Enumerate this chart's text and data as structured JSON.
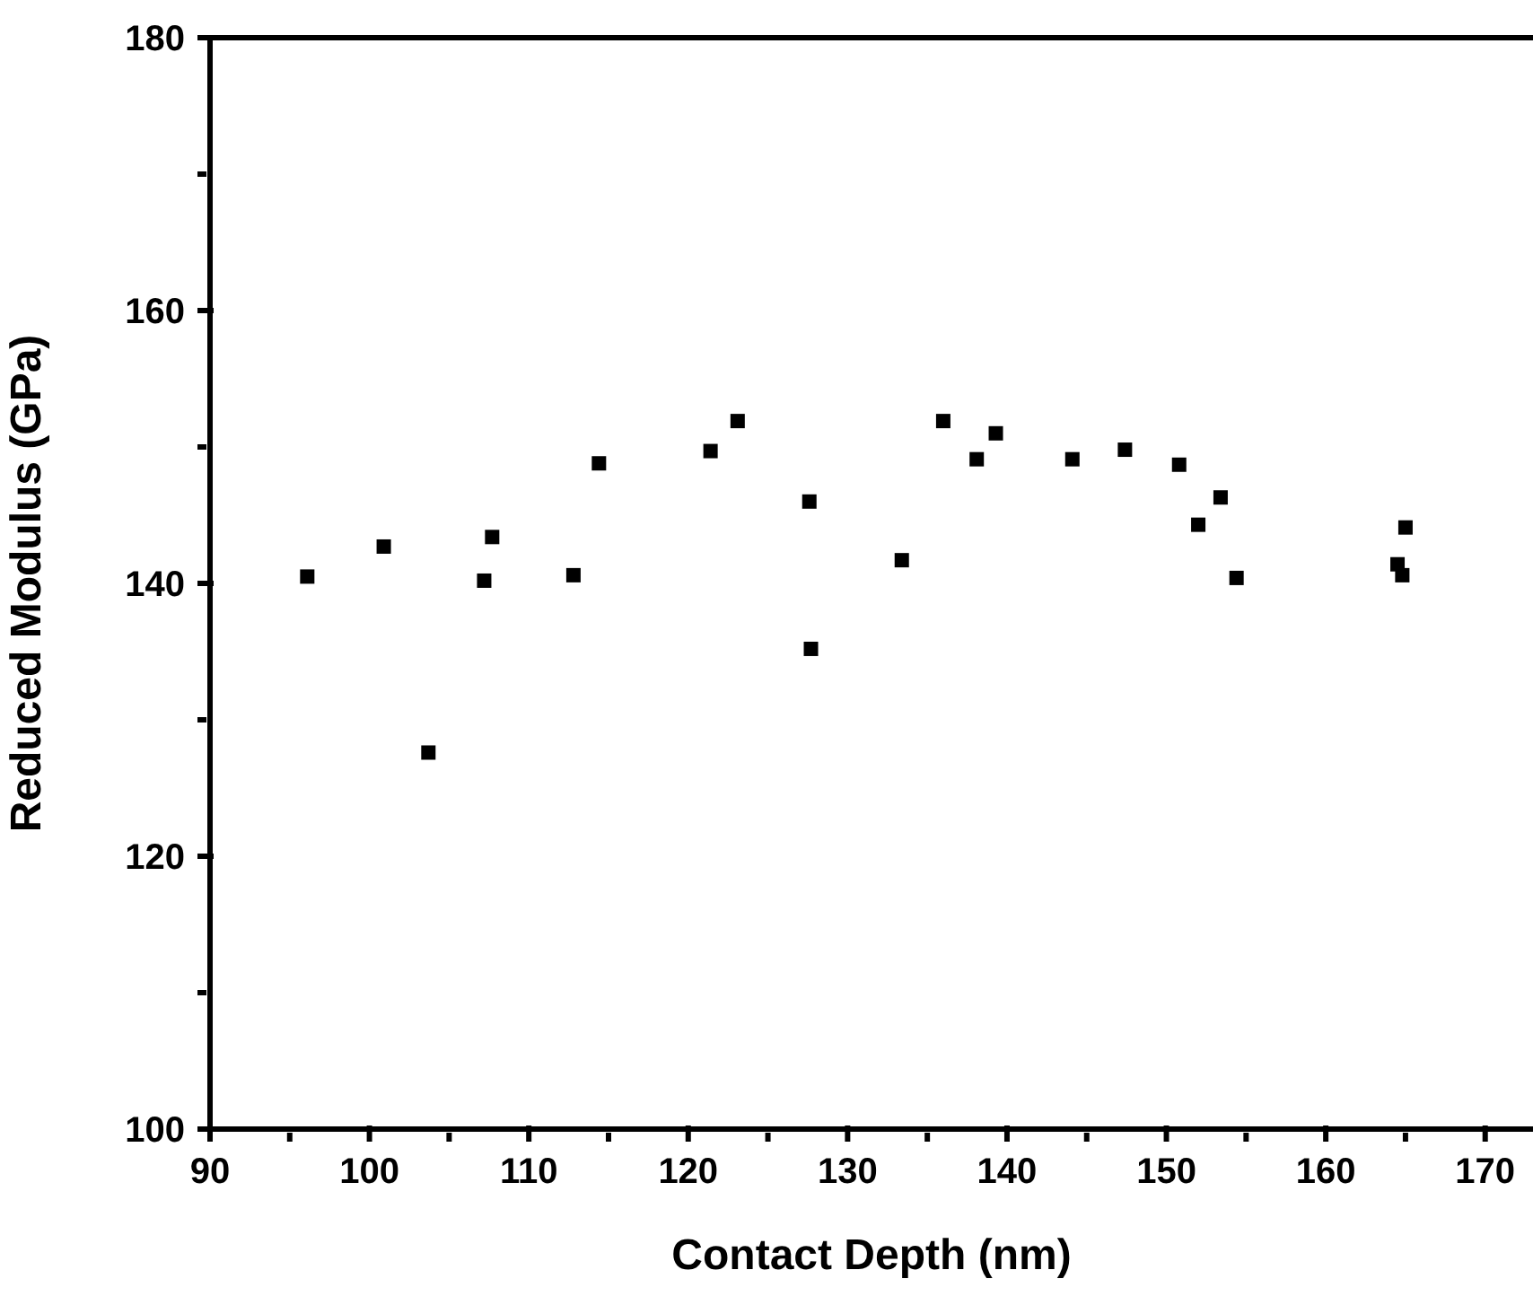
{
  "chart_data": {
    "type": "scatter",
    "xlabel": "Contact Depth (nm)",
    "ylabel": "Reduced Modulus (GPa)",
    "xlim": [
      90,
      173
    ],
    "ylim": [
      100,
      180
    ],
    "xticks": [
      90,
      {
        "value": 95,
        "label": null
      },
      100,
      {
        "value": 105,
        "label": null
      },
      110,
      {
        "value": 115,
        "label": null
      },
      120,
      {
        "value": 125,
        "label": null
      },
      130,
      {
        "value": 135,
        "label": null
      },
      140,
      {
        "value": 145,
        "label": null
      },
      150,
      {
        "value": 155,
        "label": null
      },
      160,
      {
        "value": 165,
        "label": null
      },
      170
    ],
    "yticks": [
      100,
      {
        "value": 110,
        "label": null
      },
      120,
      {
        "value": 130,
        "label": null
      },
      140,
      {
        "value": 150,
        "label": null
      },
      160,
      {
        "value": 170,
        "label": null
      },
      180
    ],
    "marker": "square",
    "grid": false,
    "legend": false,
    "series": [
      {
        "color": "#000000",
        "x": [
          96.1,
          100.9,
          103.7,
          107.2,
          107.7,
          112.8,
          114.4,
          121.4,
          123.1,
          127.6,
          127.7,
          133.4,
          136.0,
          138.1,
          139.3,
          144.1,
          147.4,
          150.8,
          152.0,
          153.4,
          154.4,
          164.5,
          164.8,
          165.0
        ],
        "values": [
          140.5,
          142.7,
          127.6,
          140.2,
          143.4,
          140.6,
          148.8,
          149.7,
          151.9,
          146.0,
          135.2,
          141.7,
          151.9,
          149.1,
          151.0,
          149.1,
          149.8,
          148.7,
          144.3,
          146.3,
          140.4,
          141.4,
          140.6,
          144.1
        ]
      }
    ]
  }
}
